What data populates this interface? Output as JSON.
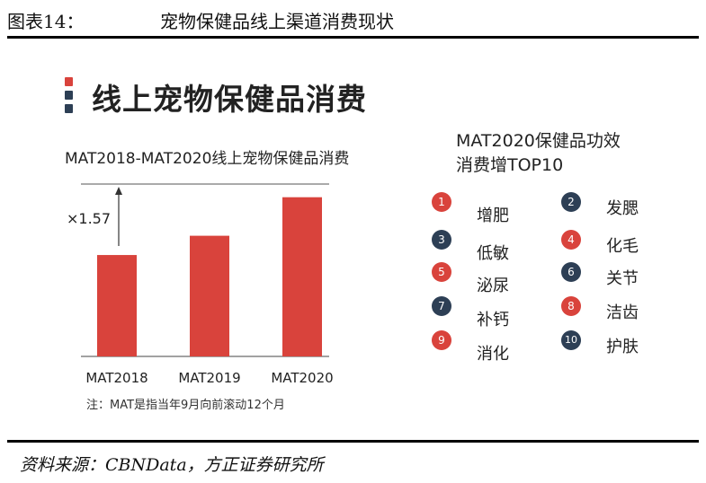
{
  "figure": {
    "label": "图表14：",
    "title": "宠物保健品线上渠道消费现状",
    "source": "资料来源：CBNData，方正证券研究所"
  },
  "slide": {
    "title": "线上宠物保健品消费",
    "marker_colors": [
      "#d9433c",
      "#2d3f55",
      "#2d3f55"
    ]
  },
  "chart_data": {
    "type": "bar",
    "title": "MAT2018-MAT2020线上宠物保健品消费",
    "categories": [
      "MAT2018",
      "MAT2019",
      "MAT2020"
    ],
    "values": [
      1.0,
      1.19,
      1.57
    ],
    "ylim": [
      0,
      1.7
    ],
    "annotation": "×1.57",
    "note": "注：MAT是指当年9月向前滚动12个月",
    "bar_color": "#d9433c",
    "grid": false
  },
  "top10": {
    "title_line1": "MAT2020保健品功效",
    "title_line2": "消费增TOP10",
    "badge_colors": {
      "red": "#d9433c",
      "navy": "#2d3f55"
    },
    "items": [
      {
        "rank": "1",
        "label": "增肥",
        "color": "red"
      },
      {
        "rank": "2",
        "label": "发腮",
        "color": "navy"
      },
      {
        "rank": "3",
        "label": "低敏",
        "color": "navy"
      },
      {
        "rank": "4",
        "label": "化毛",
        "color": "red"
      },
      {
        "rank": "5",
        "label": "泌尿",
        "color": "red"
      },
      {
        "rank": "6",
        "label": "关节",
        "color": "navy"
      },
      {
        "rank": "7",
        "label": "补钙",
        "color": "navy"
      },
      {
        "rank": "8",
        "label": "洁齿",
        "color": "red"
      },
      {
        "rank": "9",
        "label": "消化",
        "color": "red"
      },
      {
        "rank": "10",
        "label": "护肤",
        "color": "navy"
      }
    ]
  }
}
